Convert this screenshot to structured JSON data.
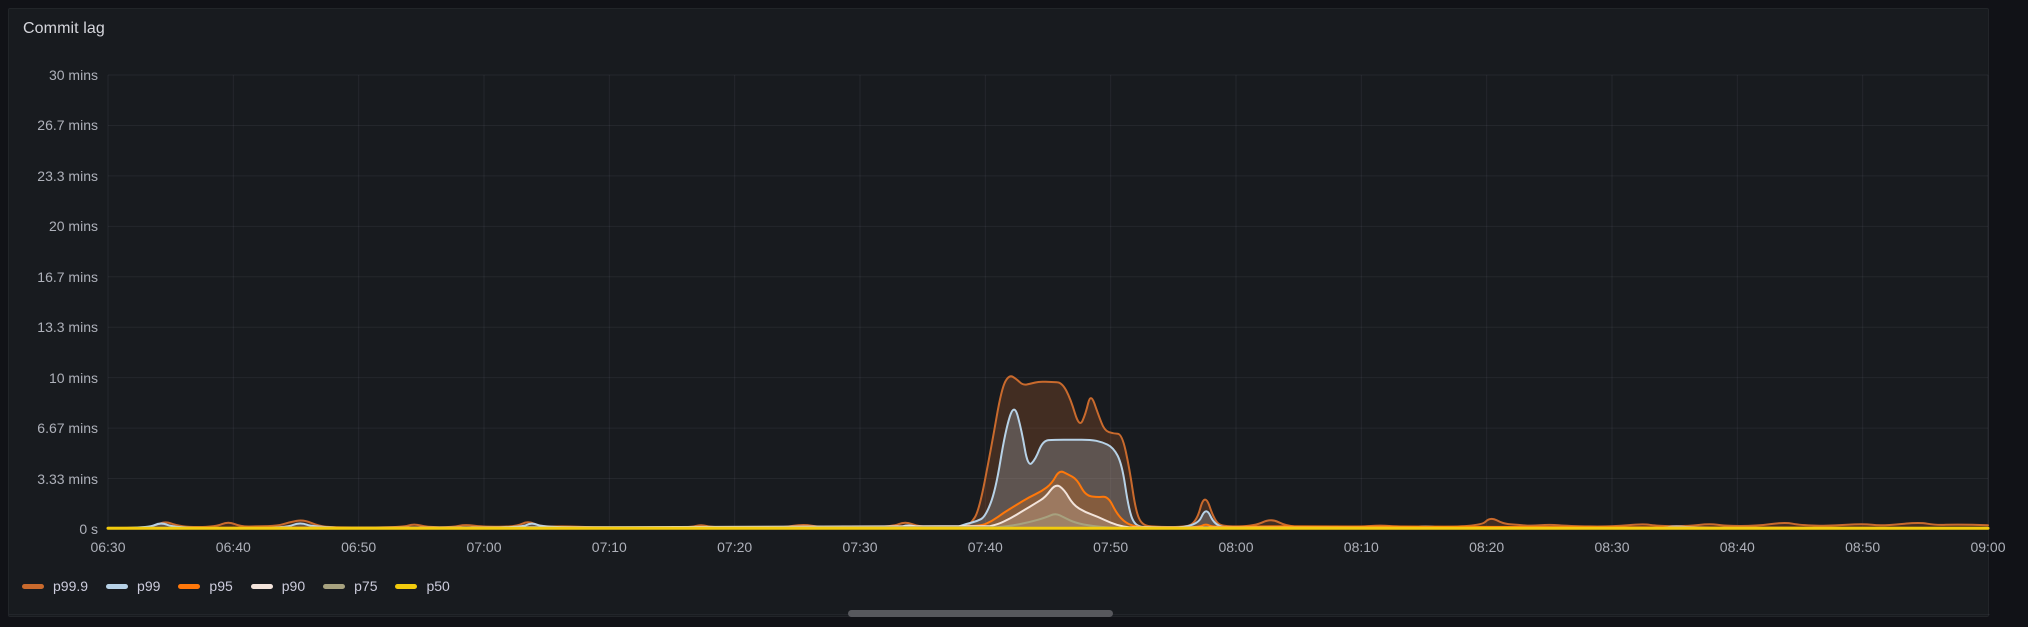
{
  "panel": {
    "title": "Commit lag"
  },
  "colors": {
    "background": "#111217",
    "panel_bg": "#181B1F",
    "panel_border": "#222529",
    "grid": "rgba(204,204,220,0.07)",
    "axis_text": "#AEB1BA",
    "title_text": "#D5D6DC",
    "legend_text": "#CCCCDC",
    "scrollbar_thumb": "#57585D"
  },
  "chart_data": {
    "type": "area",
    "title": "Commit lag",
    "xlabel": "",
    "ylabel": "",
    "x_start": "06:30",
    "x_end": "09:00",
    "x_tick_interval_minutes": 10,
    "x_range_minutes": [
      0,
      150
    ],
    "ylim_minutes": [
      0,
      30
    ],
    "grid": true,
    "legend_position": "bottom-left",
    "x_ticks": [
      "06:30",
      "06:40",
      "06:50",
      "07:00",
      "07:10",
      "07:20",
      "07:30",
      "07:40",
      "07:50",
      "08:00",
      "08:10",
      "08:20",
      "08:30",
      "08:40",
      "08:50",
      "09:00"
    ],
    "y_ticks": [
      "30 mins",
      "26.7 mins",
      "23.3 mins",
      "20 mins",
      "16.7 mins",
      "13.3 mins",
      "10 mins",
      "6.67 mins",
      "3.33 mins",
      "0 s"
    ],
    "series": [
      {
        "name": "p99.9",
        "color": "#C96A2D",
        "fill_opacity": 0.24,
        "width": 2,
        "points": [
          [
            0,
            0.07
          ],
          [
            3,
            0.07
          ],
          [
            3.8,
            0.25
          ],
          [
            4.6,
            0.5
          ],
          [
            5.4,
            0.25
          ],
          [
            6.5,
            0.12
          ],
          [
            8.6,
            0.15
          ],
          [
            9.6,
            0.5
          ],
          [
            10.6,
            0.15
          ],
          [
            12,
            0.18
          ],
          [
            13.5,
            0.2
          ],
          [
            14.5,
            0.45
          ],
          [
            15.6,
            0.62
          ],
          [
            16.8,
            0.2
          ],
          [
            18,
            0.1
          ],
          [
            23.5,
            0.1
          ],
          [
            24.4,
            0.35
          ],
          [
            25.4,
            0.12
          ],
          [
            27.5,
            0.12
          ],
          [
            28.5,
            0.3
          ],
          [
            29.8,
            0.15
          ],
          [
            32.6,
            0.15
          ],
          [
            33.5,
            0.55
          ],
          [
            34.5,
            0.15
          ],
          [
            36.5,
            0.18
          ],
          [
            38.5,
            0.12
          ],
          [
            43,
            0.08
          ],
          [
            46.5,
            0.1
          ],
          [
            47.3,
            0.3
          ],
          [
            48.2,
            0.1
          ],
          [
            52,
            0.08
          ],
          [
            53.8,
            0.1
          ],
          [
            55.5,
            0.32
          ],
          [
            56.8,
            0.12
          ],
          [
            59,
            0.1
          ],
          [
            62.6,
            0.15
          ],
          [
            63.6,
            0.5
          ],
          [
            64.7,
            0.15
          ],
          [
            66.5,
            0.1
          ],
          [
            68.2,
            0.12
          ],
          [
            68.8,
            0.3
          ],
          [
            69.5,
            1.2
          ],
          [
            70.5,
            5.5
          ],
          [
            71.3,
            9.3
          ],
          [
            71.9,
            10.2
          ],
          [
            72.5,
            9.9
          ],
          [
            73.0,
            9.5
          ],
          [
            73.6,
            9.6
          ],
          [
            74.3,
            9.75
          ],
          [
            75.3,
            9.7
          ],
          [
            76.1,
            9.7
          ],
          [
            76.8,
            8.6
          ],
          [
            77.5,
            6.7
          ],
          [
            78.0,
            7.6
          ],
          [
            78.4,
            9.0
          ],
          [
            79.0,
            7.6
          ],
          [
            79.5,
            6.5
          ],
          [
            80.2,
            6.3
          ],
          [
            80.9,
            6.3
          ],
          [
            81.5,
            4.0
          ],
          [
            82.0,
            1.2
          ],
          [
            82.5,
            0.25
          ],
          [
            83.5,
            0.15
          ],
          [
            85.5,
            0.12
          ],
          [
            86.8,
            0.3
          ],
          [
            87.5,
            2.45
          ],
          [
            88.3,
            0.5
          ],
          [
            89,
            0.15
          ],
          [
            91.5,
            0.2
          ],
          [
            92.8,
            0.7
          ],
          [
            94,
            0.2
          ],
          [
            95.5,
            0.12
          ],
          [
            100,
            0.15
          ],
          [
            101.5,
            0.25
          ],
          [
            103,
            0.15
          ],
          [
            109.5,
            0.15
          ],
          [
            110.3,
            0.8
          ],
          [
            111.3,
            0.35
          ],
          [
            112.2,
            0.3
          ],
          [
            113.5,
            0.2
          ],
          [
            115,
            0.3
          ],
          [
            116.5,
            0.2
          ],
          [
            120,
            0.15
          ],
          [
            122.5,
            0.35
          ],
          [
            123.5,
            0.2
          ],
          [
            126,
            0.18
          ],
          [
            127.8,
            0.35
          ],
          [
            129,
            0.2
          ],
          [
            131.5,
            0.2
          ],
          [
            133.8,
            0.45
          ],
          [
            135,
            0.25
          ],
          [
            137.5,
            0.2
          ],
          [
            140,
            0.35
          ],
          [
            141.5,
            0.2
          ],
          [
            144.5,
            0.45
          ],
          [
            145.8,
            0.25
          ],
          [
            147.5,
            0.3
          ],
          [
            150,
            0.25
          ]
        ]
      },
      {
        "name": "p99",
        "color": "#B7D2E7",
        "fill_opacity": 0.24,
        "width": 2,
        "points": [
          [
            0,
            0.05
          ],
          [
            3.2,
            0.05
          ],
          [
            4.2,
            0.45
          ],
          [
            5.2,
            0.12
          ],
          [
            8,
            0.05
          ],
          [
            14.2,
            0.08
          ],
          [
            15.3,
            0.45
          ],
          [
            16.5,
            0.1
          ],
          [
            24,
            0.05
          ],
          [
            33,
            0.08
          ],
          [
            33.8,
            0.45
          ],
          [
            34.8,
            0.08
          ],
          [
            47,
            0.05
          ],
          [
            63,
            0.05
          ],
          [
            63.8,
            0.3
          ],
          [
            64.8,
            0.08
          ],
          [
            67.5,
            0.05
          ],
          [
            68.5,
            0.35
          ],
          [
            69.3,
            0.5
          ],
          [
            70.0,
            0.8
          ],
          [
            70.8,
            2.5
          ],
          [
            71.6,
            6.5
          ],
          [
            72.3,
            8.35
          ],
          [
            72.9,
            6.5
          ],
          [
            73.4,
            4.1
          ],
          [
            74.0,
            4.6
          ],
          [
            74.6,
            5.85
          ],
          [
            75.5,
            5.9
          ],
          [
            77,
            5.9
          ],
          [
            78.4,
            5.9
          ],
          [
            79.3,
            5.75
          ],
          [
            80.2,
            5.4
          ],
          [
            80.9,
            4.3
          ],
          [
            81.4,
            1.5
          ],
          [
            81.9,
            0.2
          ],
          [
            83,
            0.1
          ],
          [
            86.9,
            0.1
          ],
          [
            87.6,
            1.5
          ],
          [
            88.3,
            0.25
          ],
          [
            89.5,
            0.05
          ],
          [
            104,
            0.05
          ],
          [
            105,
            0.2
          ],
          [
            106.5,
            0.08
          ],
          [
            124,
            0.05
          ],
          [
            125,
            0.2
          ],
          [
            126.5,
            0.08
          ],
          [
            150,
            0.05
          ]
        ]
      },
      {
        "name": "p95",
        "color": "#FF780A",
        "fill_opacity": 0.24,
        "width": 2,
        "points": [
          [
            0,
            0.04
          ],
          [
            4,
            0.06
          ],
          [
            9.8,
            0.08
          ],
          [
            15.5,
            0.1
          ],
          [
            33.5,
            0.1
          ],
          [
            63.5,
            0.08
          ],
          [
            69.5,
            0.15
          ],
          [
            70.5,
            0.5
          ],
          [
            71.5,
            1.1
          ],
          [
            72.5,
            1.6
          ],
          [
            73.5,
            2.1
          ],
          [
            74.5,
            2.5
          ],
          [
            75.3,
            3.0
          ],
          [
            75.9,
            3.9
          ],
          [
            76.6,
            3.6
          ],
          [
            77.3,
            3.3
          ],
          [
            78.0,
            2.2
          ],
          [
            79.0,
            2.1
          ],
          [
            79.8,
            2.15
          ],
          [
            80.5,
            1.0
          ],
          [
            81.2,
            0.4
          ],
          [
            82,
            0.15
          ],
          [
            83,
            0.1
          ],
          [
            87,
            0.1
          ],
          [
            87.6,
            0.35
          ],
          [
            88.2,
            0.1
          ],
          [
            92.8,
            0.2
          ],
          [
            110,
            0.12
          ],
          [
            150,
            0.06
          ]
        ]
      },
      {
        "name": "p90",
        "color": "#F3E4DB",
        "fill_opacity": 0.22,
        "width": 2,
        "points": [
          [
            0,
            0.03
          ],
          [
            69.8,
            0.08
          ],
          [
            71,
            0.3
          ],
          [
            72,
            0.7
          ],
          [
            73,
            1.2
          ],
          [
            74,
            1.7
          ],
          [
            74.8,
            2.1
          ],
          [
            75.6,
            3.0
          ],
          [
            76.3,
            2.6
          ],
          [
            77,
            1.6
          ],
          [
            78,
            1.1
          ],
          [
            79,
            0.8
          ],
          [
            80,
            0.4
          ],
          [
            81,
            0.15
          ],
          [
            82,
            0.06
          ],
          [
            150,
            0.04
          ]
        ]
      },
      {
        "name": "p75",
        "color": "#A7A27F",
        "fill_opacity": 0.22,
        "width": 2,
        "points": [
          [
            0,
            0.03
          ],
          [
            70,
            0.05
          ],
          [
            72,
            0.2
          ],
          [
            73.5,
            0.45
          ],
          [
            74.8,
            0.75
          ],
          [
            75.6,
            1.05
          ],
          [
            76.3,
            0.75
          ],
          [
            77.2,
            0.4
          ],
          [
            78.5,
            0.2
          ],
          [
            80,
            0.08
          ],
          [
            82,
            0.04
          ],
          [
            150,
            0.03
          ]
        ]
      },
      {
        "name": "p50",
        "color": "#F2CB0D",
        "fill_opacity": 0.25,
        "width": 3,
        "points": [
          [
            0,
            0.05
          ],
          [
            150,
            0.05
          ]
        ]
      }
    ]
  }
}
